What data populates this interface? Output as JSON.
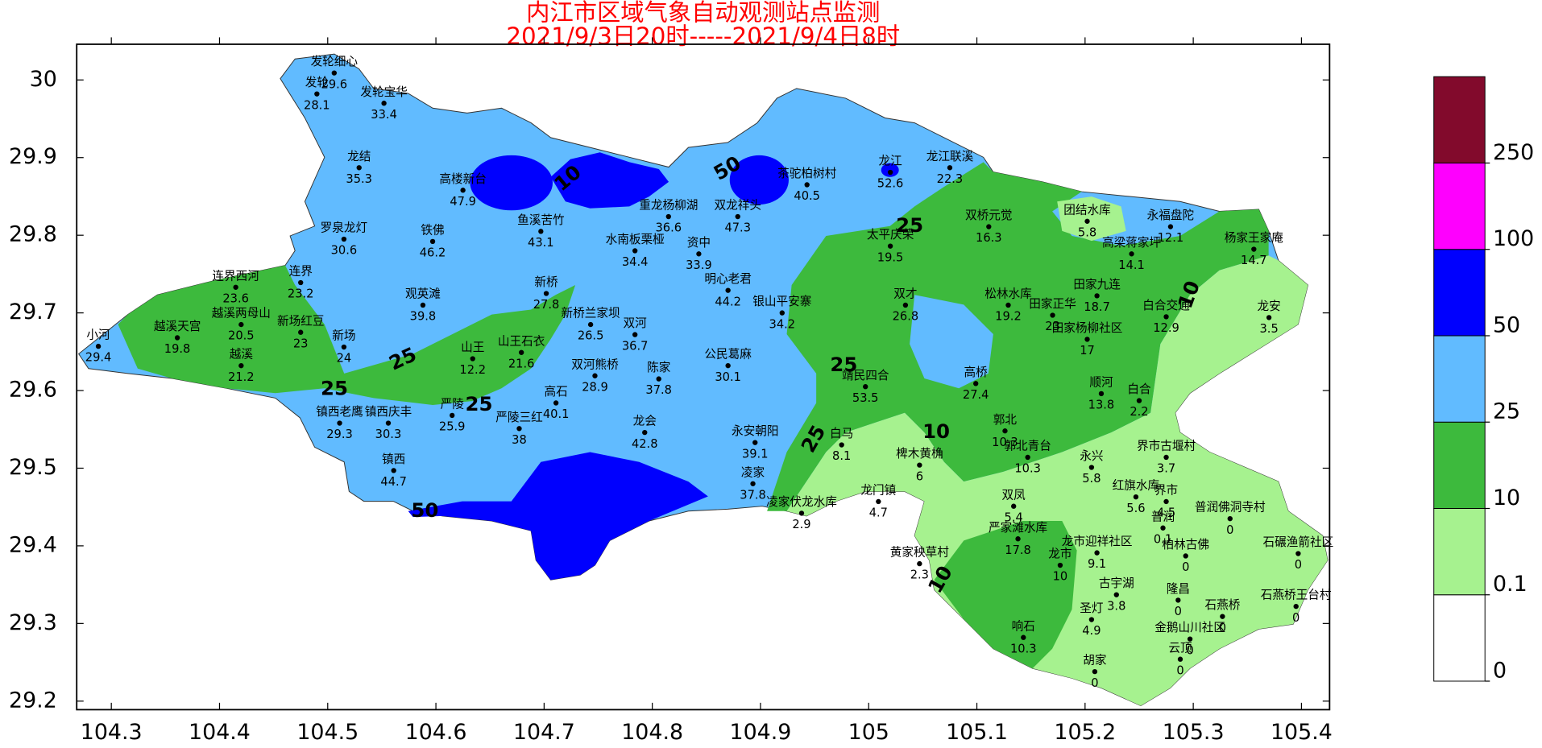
{
  "title": [
    "内江市区域气象自动观测站点监测",
    "2021/9/3日20时-----2021/9/4日8时"
  ],
  "map": {
    "xlim": [
      104.268,
      105.426
    ],
    "ylim": [
      29.189,
      30.046
    ],
    "xticks": [
      104.3,
      104.4,
      104.5,
      104.6,
      104.7,
      104.8,
      104.9,
      105,
      105.1,
      105.2,
      105.3,
      105.4
    ],
    "yticks": [
      29.2,
      29.3,
      29.4,
      29.5,
      29.6,
      29.7,
      29.8,
      29.9,
      30
    ]
  },
  "colorbar": {
    "levels": [
      0,
      0.1,
      10,
      25,
      50,
      100,
      250
    ],
    "colors": [
      "#ffffff",
      "#a6f28f",
      "#3dba3d",
      "#61bbff",
      "#0000fe",
      "#fe00fe",
      "#820a2c"
    ]
  },
  "contour_labels": [
    10,
    50,
    25,
    25,
    25,
    25,
    25,
    25,
    50,
    10,
    10,
    10
  ],
  "stations": [
    {
      "name": "发轮细心",
      "lon": 104.506,
      "lat": 30.009,
      "value": 29.6
    },
    {
      "name": "发轮",
      "lon": 104.49,
      "lat": 29.982,
      "value": 28.1
    },
    {
      "name": "发轮宝华",
      "lon": 104.552,
      "lat": 29.97,
      "value": 33.4
    },
    {
      "name": "龙结",
      "lon": 104.529,
      "lat": 29.887,
      "value": 35.3
    },
    {
      "name": "高楼新台",
      "lon": 104.625,
      "lat": 29.858,
      "value": 47.9
    },
    {
      "name": "茶驼柏树村",
      "lon": 104.943,
      "lat": 29.865,
      "value": 40.5
    },
    {
      "name": "龙江",
      "lon": 105.02,
      "lat": 29.881,
      "value": 52.6
    },
    {
      "name": "龙江联溪",
      "lon": 105.075,
      "lat": 29.887,
      "value": 22.3
    },
    {
      "name": "双桥元觉",
      "lon": 105.111,
      "lat": 29.811,
      "value": 16.3
    },
    {
      "name": "团结水库",
      "lon": 105.202,
      "lat": 29.818,
      "value": 5.8
    },
    {
      "name": "永福盘陀",
      "lon": 105.279,
      "lat": 29.811,
      "value": 12.1
    },
    {
      "name": "杨家王家庵",
      "lon": 105.356,
      "lat": 29.782,
      "value": 14.7
    },
    {
      "name": "高梁蒋家坪",
      "lon": 105.243,
      "lat": 29.776,
      "value": 14.1
    },
    {
      "name": "重龙杨柳湖",
      "lon": 104.815,
      "lat": 29.824,
      "value": 36.6
    },
    {
      "name": "双龙祥头",
      "lon": 104.879,
      "lat": 29.824,
      "value": 47.3
    },
    {
      "name": "鱼溪苦竹",
      "lon": 104.697,
      "lat": 29.805,
      "value": 43.1
    },
    {
      "name": "罗泉龙灯",
      "lon": 104.515,
      "lat": 29.795,
      "value": 30.6
    },
    {
      "name": "铁佛",
      "lon": 104.597,
      "lat": 29.792,
      "value": 46.2
    },
    {
      "name": "水南板栗桠",
      "lon": 104.784,
      "lat": 29.78,
      "value": 34.4
    },
    {
      "name": "资中",
      "lon": 104.843,
      "lat": 29.776,
      "value": 33.9
    },
    {
      "name": "连界西河",
      "lon": 104.415,
      "lat": 29.733,
      "value": 23.6
    },
    {
      "name": "连界",
      "lon": 104.475,
      "lat": 29.739,
      "value": 23.2
    },
    {
      "name": "新桥",
      "lon": 104.702,
      "lat": 29.725,
      "value": 27.8
    },
    {
      "name": "明心老君",
      "lon": 104.87,
      "lat": 29.729,
      "value": 44.2
    },
    {
      "name": "银山平安寨",
      "lon": 104.92,
      "lat": 29.7,
      "value": 34.2
    },
    {
      "name": "观英滩",
      "lon": 104.588,
      "lat": 29.71,
      "value": 39.8
    },
    {
      "name": "越溪两母山",
      "lon": 104.42,
      "lat": 29.685,
      "value": 20.5
    },
    {
      "name": "越溪天宫",
      "lon": 104.361,
      "lat": 29.668,
      "value": 19.8
    },
    {
      "name": "新场红豆",
      "lon": 104.475,
      "lat": 29.675,
      "value": 23
    },
    {
      "name": "小河",
      "lon": 104.288,
      "lat": 29.657,
      "value": 29.4
    },
    {
      "name": "新场",
      "lon": 104.515,
      "lat": 29.656,
      "value": 24
    },
    {
      "name": "越溪",
      "lon": 104.42,
      "lat": 29.632,
      "value": 21.2
    },
    {
      "name": "新桥兰家坝",
      "lon": 104.743,
      "lat": 29.685,
      "value": 26.5
    },
    {
      "name": "双河",
      "lon": 104.784,
      "lat": 29.672,
      "value": 36.7
    },
    {
      "name": "山王",
      "lon": 104.634,
      "lat": 29.641,
      "value": 12.2
    },
    {
      "name": "山王石衣",
      "lon": 104.679,
      "lat": 29.649,
      "value": 21.6
    },
    {
      "name": "双河熊桥",
      "lon": 104.747,
      "lat": 29.619,
      "value": 28.9
    },
    {
      "name": "陈家",
      "lon": 104.806,
      "lat": 29.615,
      "value": 37.8
    },
    {
      "name": "公民葛麻",
      "lon": 104.87,
      "lat": 29.632,
      "value": 30.1
    },
    {
      "name": "高石",
      "lon": 104.711,
      "lat": 29.584,
      "value": 40.1
    },
    {
      "name": "镇西老鹰",
      "lon": 104.511,
      "lat": 29.558,
      "value": 29.3
    },
    {
      "name": "镇西庆丰",
      "lon": 104.556,
      "lat": 29.558,
      "value": 30.3
    },
    {
      "name": "严陵",
      "lon": 104.615,
      "lat": 29.568,
      "value": 25.9
    },
    {
      "name": "严陵三红",
      "lon": 104.677,
      "lat": 29.551,
      "value": 38
    },
    {
      "name": "龙会",
      "lon": 104.793,
      "lat": 29.546,
      "value": 42.8
    },
    {
      "name": "永安朝阳",
      "lon": 104.895,
      "lat": 29.533,
      "value": 39.1
    },
    {
      "name": "镇西",
      "lon": 104.561,
      "lat": 29.497,
      "value": 44.7
    },
    {
      "name": "凌家",
      "lon": 104.893,
      "lat": 29.48,
      "value": 37.8
    },
    {
      "name": "凌家伏龙水库",
      "lon": 104.938,
      "lat": 29.442,
      "value": 2.9
    },
    {
      "name": "龙门镇",
      "lon": 105.009,
      "lat": 29.457,
      "value": 4.7
    },
    {
      "name": "靖民四合",
      "lon": 104.997,
      "lat": 29.605,
      "value": 53.5
    },
    {
      "name": "白马",
      "lon": 104.975,
      "lat": 29.53,
      "value": 8.1
    },
    {
      "name": "高桥",
      "lon": 105.099,
      "lat": 29.609,
      "value": 27.4
    },
    {
      "name": "郭北",
      "lon": 105.126,
      "lat": 29.548,
      "value": 10.3
    },
    {
      "name": "郭北青台",
      "lon": 105.147,
      "lat": 29.514,
      "value": 10.3
    },
    {
      "name": "椑木黄桷",
      "lon": 105.047,
      "lat": 29.504,
      "value": 6
    },
    {
      "name": "永兴",
      "lon": 105.206,
      "lat": 29.501,
      "value": 5.8
    },
    {
      "name": "界市古堰村",
      "lon": 105.275,
      "lat": 29.514,
      "value": 3.7
    },
    {
      "name": "双凤",
      "lon": 105.134,
      "lat": 29.451,
      "value": 5.4
    },
    {
      "name": "红旗水库",
      "lon": 105.247,
      "lat": 29.463,
      "value": 5.6
    },
    {
      "name": "界市",
      "lon": 105.275,
      "lat": 29.457,
      "value": 4.5
    },
    {
      "name": "普润",
      "lon": 105.272,
      "lat": 29.423,
      "value": 0.1
    },
    {
      "name": "普润佛洞寺村",
      "lon": 105.334,
      "lat": 29.435,
      "value": 0
    },
    {
      "name": "石碾渔箭社区",
      "lon": 105.397,
      "lat": 29.39,
      "value": 0
    },
    {
      "name": "严家滩水库",
      "lon": 105.138,
      "lat": 29.409,
      "value": 17.8
    },
    {
      "name": "黄家秧草村",
      "lon": 105.047,
      "lat": 29.377,
      "value": 2.3
    },
    {
      "name": "龙市迎祥社区",
      "lon": 105.211,
      "lat": 29.391,
      "value": 9.1
    },
    {
      "name": "柏林古佛",
      "lon": 105.293,
      "lat": 29.387,
      "value": 0
    },
    {
      "name": "龙市",
      "lon": 105.177,
      "lat": 29.375,
      "value": 10
    },
    {
      "name": "古宇湖",
      "lon": 105.229,
      "lat": 29.337,
      "value": 3.8
    },
    {
      "name": "隆昌",
      "lon": 105.286,
      "lat": 29.33,
      "value": 0
    },
    {
      "name": "石燕桥",
      "lon": 105.327,
      "lat": 29.309,
      "value": 0
    },
    {
      "name": "石燕桥王台村",
      "lon": 105.395,
      "lat": 29.322,
      "value": 0
    },
    {
      "name": "圣灯",
      "lon": 105.206,
      "lat": 29.305,
      "value": 4.9
    },
    {
      "name": "响石",
      "lon": 105.143,
      "lat": 29.282,
      "value": 10.3
    },
    {
      "name": "金鹅山川社区",
      "lon": 105.297,
      "lat": 29.28,
      "value": 0
    },
    {
      "name": "胡家",
      "lon": 105.209,
      "lat": 29.238,
      "value": 0
    },
    {
      "name": "云顶",
      "lon": 105.288,
      "lat": 29.254,
      "value": 0
    },
    {
      "name": "田家九连",
      "lon": 105.211,
      "lat": 29.722,
      "value": 18.7
    },
    {
      "name": "松林水库",
      "lon": 105.129,
      "lat": 29.71,
      "value": 19.2
    },
    {
      "name": "田家正华",
      "lon": 105.17,
      "lat": 29.697,
      "value": 23
    },
    {
      "name": "田家杨柳社区",
      "lon": 105.202,
      "lat": 29.666,
      "value": 17
    },
    {
      "name": "白合交通",
      "lon": 105.275,
      "lat": 29.695,
      "value": 12.9
    },
    {
      "name": "龙安",
      "lon": 105.37,
      "lat": 29.694,
      "value": 3.5
    },
    {
      "name": "顺河",
      "lon": 105.215,
      "lat": 29.596,
      "value": 13.8
    },
    {
      "name": "白合",
      "lon": 105.25,
      "lat": 29.587,
      "value": 2.2
    },
    {
      "name": "太平庆荣",
      "lon": 105.02,
      "lat": 29.786,
      "value": 19.5
    },
    {
      "name": "双才",
      "lon": 105.034,
      "lat": 29.71,
      "value": 26.8
    }
  ]
}
